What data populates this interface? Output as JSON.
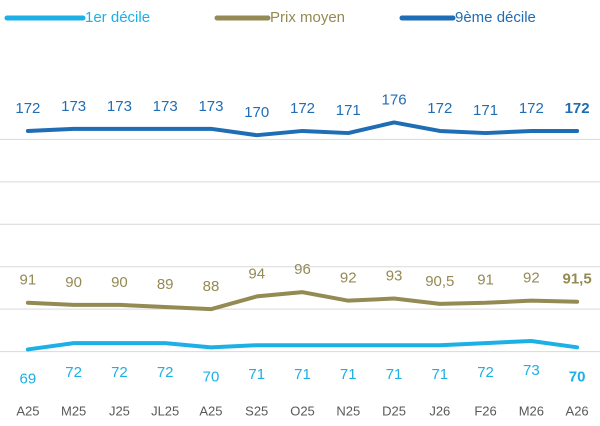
{
  "chart_data": {
    "type": "line",
    "categories": [
      "A25",
      "M25",
      "J25",
      "JL25",
      "A25",
      "S25",
      "O25",
      "N25",
      "D25",
      "J26",
      "F26",
      "M26",
      "A26"
    ],
    "series": [
      {
        "name": "1er décile",
        "color": "#1cb0e6",
        "values": [
          69,
          72,
          72,
          72,
          70,
          71,
          71,
          71,
          71,
          71,
          72,
          73,
          70
        ]
      },
      {
        "name": "Prix moyen",
        "color": "#948a54",
        "values": [
          91,
          90,
          90,
          89,
          88,
          94,
          96,
          92,
          93,
          90.5,
          91,
          92,
          91.5
        ],
        "value_labels": [
          "91",
          "90",
          "90",
          "89",
          "88",
          "94",
          "96",
          "92",
          "93",
          "90,5",
          "91",
          "92",
          "91,5"
        ]
      },
      {
        "name": "9ème décile",
        "color": "#1f6db4",
        "values": [
          172,
          173,
          173,
          173,
          173,
          170,
          172,
          171,
          176,
          172,
          171,
          172,
          172
        ]
      }
    ],
    "ylim": [
      48,
      188
    ],
    "yticks": [
      68,
      88,
      108,
      128,
      148,
      168
    ],
    "grid": true
  }
}
